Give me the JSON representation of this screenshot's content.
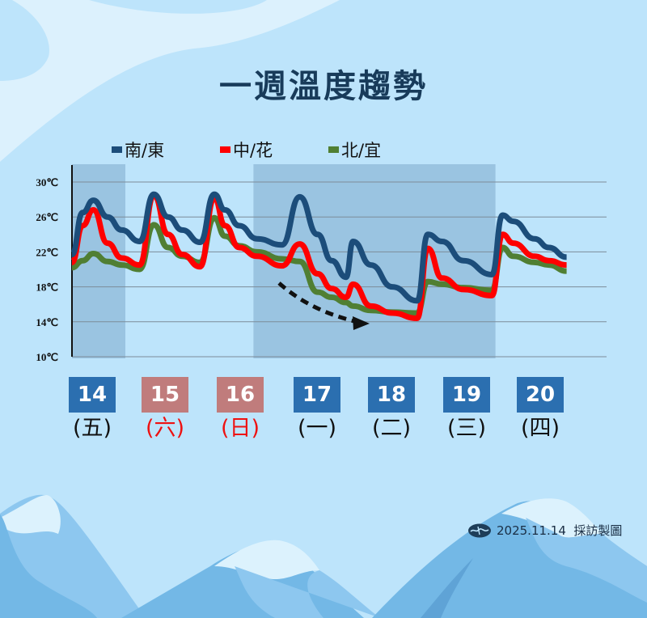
{
  "title": "一週溫度趨勢",
  "legend": [
    {
      "label": "南/東",
      "color": "#1c4d7a"
    },
    {
      "label": "中/花",
      "color": "#ff0000"
    },
    {
      "label": "北/宜",
      "color": "#507f33"
    }
  ],
  "days": [
    {
      "date": "14",
      "weekday": "(五)",
      "box_color": "#2b6fb0",
      "text_color": "#111111"
    },
    {
      "date": "15",
      "weekday": "(六)",
      "box_color": "#c07c7c",
      "text_color": "#ee1111"
    },
    {
      "date": "16",
      "weekday": "(日)",
      "box_color": "#c07c7c",
      "text_color": "#ee1111"
    },
    {
      "date": "17",
      "weekday": "(一)",
      "box_color": "#2b6fb0",
      "text_color": "#111111"
    },
    {
      "date": "18",
      "weekday": "(二)",
      "box_color": "#2b6fb0",
      "text_color": "#111111"
    },
    {
      "date": "19",
      "weekday": "(三)",
      "box_color": "#2b6fb0",
      "text_color": "#111111"
    },
    {
      "date": "20",
      "weekday": "(四)",
      "box_color": "#2b6fb0",
      "text_color": "#111111"
    }
  ],
  "credit": {
    "text": "2025.11.14  採訪製圖"
  },
  "chart_data": {
    "type": "line",
    "title": "一週溫度趨勢",
    "xlabel": "",
    "ylabel": "",
    "ylim": [
      10,
      30
    ],
    "yticks": [
      "10℃",
      "14℃",
      "18℃",
      "22℃",
      "26℃",
      "30℃"
    ],
    "grid": true,
    "legend_position": "top",
    "categories": [
      "14 (五)",
      "15 (六)",
      "16 (日)",
      "17 (一)",
      "18 (二)",
      "19 (三)",
      "20 (四)"
    ],
    "shaded_ranges": [
      [
        0,
        0.75
      ],
      [
        2.55,
        5.95
      ]
    ],
    "annotations": [
      {
        "type": "dashed-arrow",
        "from": [
          2.9,
          18.5
        ],
        "to": [
          4.1,
          14.0
        ],
        "meaning": "cooling trend"
      }
    ],
    "x": [
      0.0,
      0.15,
      0.3,
      0.5,
      0.7,
      0.95,
      1.15,
      1.35,
      1.55,
      1.8,
      2.0,
      2.15,
      2.35,
      2.6,
      2.95,
      3.2,
      3.45,
      3.65,
      3.85,
      3.95,
      4.2,
      4.5,
      4.85,
      5.0,
      5.2,
      5.5,
      5.9,
      6.05,
      6.2,
      6.5,
      6.7,
      6.95
    ],
    "series": [
      {
        "name": "南/東",
        "color": "#1c4d7a",
        "values": [
          21.7,
          26.5,
          27.9,
          26.0,
          24.5,
          23.2,
          28.6,
          26.0,
          24.5,
          23.1,
          28.6,
          26.8,
          25.0,
          23.5,
          22.8,
          28.3,
          24.0,
          21.0,
          19.1,
          23.2,
          20.5,
          18.0,
          16.4,
          24.0,
          23.2,
          21.0,
          19.4,
          26.2,
          25.5,
          23.5,
          22.5,
          21.4
        ]
      },
      {
        "name": "中/花",
        "color": "#ff0000",
        "values": [
          20.8,
          25.0,
          26.8,
          23.0,
          21.3,
          20.5,
          28.5,
          24.0,
          21.7,
          20.3,
          28.2,
          25.0,
          22.5,
          21.5,
          20.4,
          22.9,
          19.5,
          17.8,
          16.8,
          18.3,
          15.8,
          15.0,
          14.4,
          22.4,
          19.0,
          17.7,
          17.0,
          24.0,
          23.0,
          21.5,
          21.0,
          20.5
        ]
      },
      {
        "name": "北/宜",
        "color": "#507f33",
        "values": [
          20.2,
          21.0,
          21.8,
          20.9,
          20.5,
          20.0,
          25.1,
          22.5,
          21.5,
          20.8,
          25.9,
          23.8,
          22.7,
          22.0,
          21.2,
          20.9,
          17.4,
          16.8,
          16.2,
          15.8,
          15.3,
          15.1,
          15.0,
          18.6,
          18.3,
          17.9,
          17.6,
          22.5,
          21.5,
          20.8,
          20.5,
          19.8
        ]
      }
    ]
  }
}
